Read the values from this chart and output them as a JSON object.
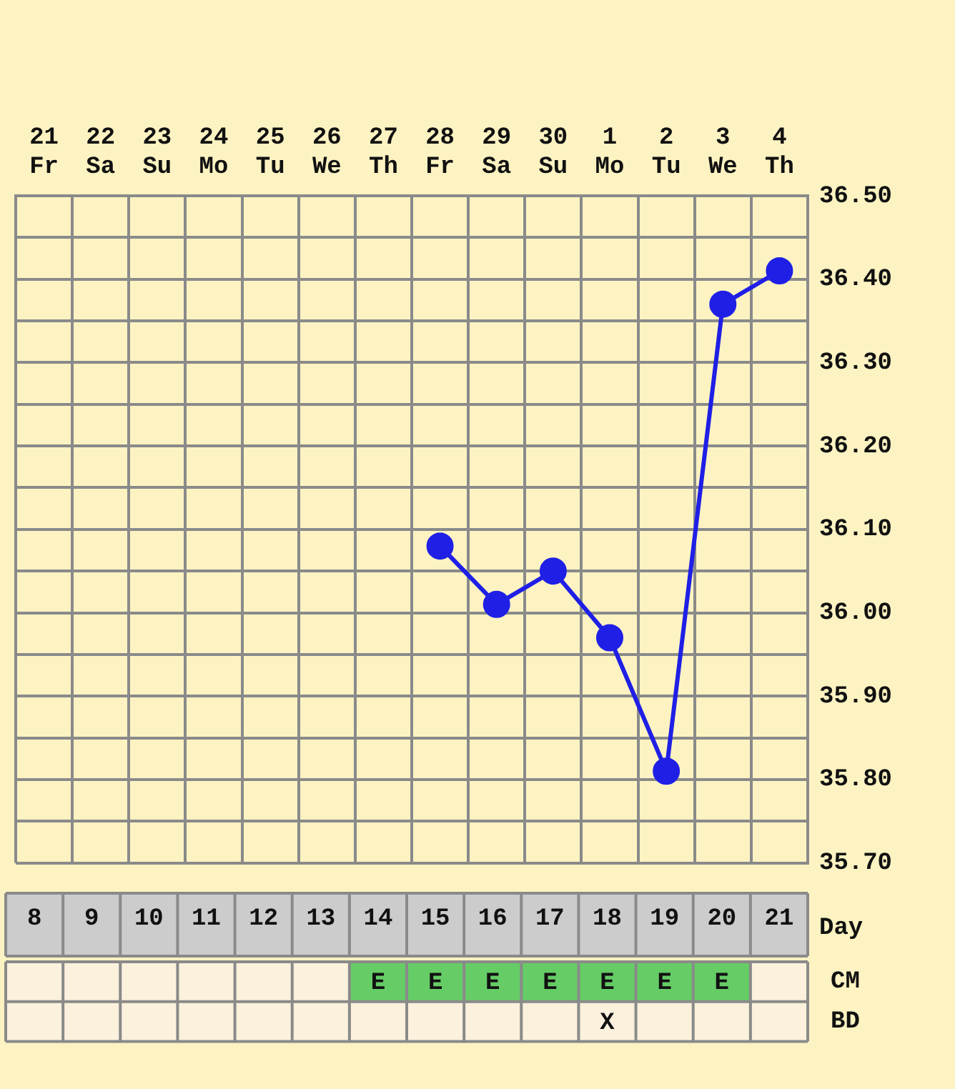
{
  "chart_data": [
    {
      "type": "line",
      "categories": [
        "21 Fr",
        "22 Sa",
        "23 Su",
        "24 Mo",
        "25 Tu",
        "26 We",
        "27 Th",
        "28 Fr",
        "29 Sa",
        "30 Su",
        "1 Mo",
        "2 Tu",
        "3 We",
        "4 Th"
      ],
      "values": [
        null,
        null,
        null,
        null,
        null,
        null,
        null,
        36.08,
        36.01,
        36.05,
        35.97,
        35.81,
        36.37,
        36.41
      ],
      "color": "#1f1fe6",
      "marker": "circle",
      "grid": true,
      "ylim": [
        35.7,
        36.5
      ],
      "yticks": [
        {
          "value": 35.7,
          "label": "35.70"
        },
        {
          "value": 35.75,
          "label": null
        },
        {
          "value": 35.8,
          "label": "35.80"
        },
        {
          "value": 35.85,
          "label": null
        },
        {
          "value": 35.9,
          "label": "35.90"
        },
        {
          "value": 35.95,
          "label": null
        },
        {
          "value": 36.0,
          "label": "36.00"
        },
        {
          "value": 36.05,
          "label": null
        },
        {
          "value": 36.1,
          "label": "36.10"
        },
        {
          "value": 36.15,
          "label": null
        },
        {
          "value": 36.2,
          "label": "36.20"
        },
        {
          "value": 36.25,
          "label": null
        },
        {
          "value": 36.3,
          "label": "36.30"
        },
        {
          "value": 36.35,
          "label": null
        },
        {
          "value": 36.4,
          "label": "36.40"
        },
        {
          "value": 36.45,
          "label": null
        },
        {
          "value": 36.5,
          "label": "36.50"
        }
      ]
    },
    {
      "type": "heatmap",
      "categories": [
        "8",
        "9",
        "10",
        "11",
        "12",
        "13",
        "14",
        "15",
        "16",
        "17",
        "18",
        "19",
        "20",
        "21"
      ],
      "xlabel": "Day",
      "y_categories": [
        "CM",
        "BD"
      ],
      "colors": [
        [
          null,
          null,
          null,
          null,
          null,
          null,
          "#66cc66",
          "#66cc66",
          "#66cc66",
          "#66cc66",
          "#66cc66",
          "#66cc66",
          "#66cc66",
          null
        ],
        [
          null,
          null,
          null,
          null,
          null,
          null,
          null,
          null,
          null,
          null,
          null,
          null,
          null,
          null
        ]
      ],
      "cells": [
        [
          null,
          null,
          null,
          null,
          null,
          null,
          null,
          null,
          null,
          null,
          null,
          null,
          null,
          null
        ],
        [
          null,
          null,
          null,
          null,
          null,
          null,
          null,
          null,
          null,
          null,
          null,
          null,
          null,
          null
        ]
      ],
      "cell_labels": [
        [
          null,
          null,
          null,
          null,
          null,
          null,
          "E",
          "E",
          "E",
          "E",
          "E",
          "E",
          "E",
          null
        ],
        [
          null,
          null,
          null,
          null,
          null,
          null,
          null,
          null,
          null,
          null,
          "X",
          null,
          null,
          null
        ]
      ]
    }
  ]
}
